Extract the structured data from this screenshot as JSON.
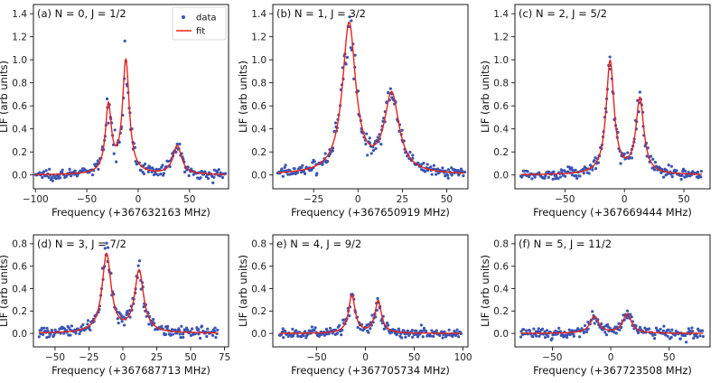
{
  "colors": {
    "data": "#3a55b4",
    "fit": "#e8231c"
  },
  "legend": {
    "data_label": "data",
    "fit_label": "fit"
  },
  "chart_data": [
    {
      "type": "scatter",
      "title": "(a) N = 0, J = 1/2",
      "xlabel": "Frequency (+367632163 MHz)",
      "ylabel": "LIF (arb units)",
      "xlim": [
        -102,
        88
      ],
      "ylim": [
        -0.12,
        1.48
      ],
      "xticks": [
        -100,
        -50,
        0,
        50
      ],
      "yticks": [
        0.0,
        0.2,
        0.4,
        0.6,
        0.8,
        1.0,
        1.2,
        1.4
      ],
      "legend": true,
      "series": [
        {
          "name": "data",
          "style": "points"
        },
        {
          "name": "fit",
          "style": "line",
          "peaks": [
            {
              "center": -29,
              "height": 0.58,
              "width": 3.5
            },
            {
              "center": -12,
              "height": 0.98,
              "width": 4.0
            },
            {
              "center": 38,
              "height": 0.25,
              "width": 5.0
            }
          ],
          "x_range": [
            -100,
            85
          ]
        }
      ]
    },
    {
      "type": "scatter",
      "title": "(b) N = 1, J = 3/2",
      "xlabel": "Frequency (+367650919 MHz)",
      "ylabel": "LIF (arb units)",
      "xlim": [
        -48,
        62
      ],
      "ylim": [
        -0.12,
        1.48
      ],
      "xticks": [
        -25,
        0,
        25,
        50
      ],
      "yticks": [
        0.0,
        0.2,
        0.4,
        0.6,
        0.8,
        1.0,
        1.2,
        1.4
      ],
      "legend": false,
      "series": [
        {
          "name": "data",
          "style": "points"
        },
        {
          "name": "fit",
          "style": "line",
          "peaks": [
            {
              "center": -5,
              "height": 1.3,
              "width": 4.5
            },
            {
              "center": 19,
              "height": 0.68,
              "width": 5.0
            }
          ],
          "x_range": [
            -45,
            60
          ]
        }
      ]
    },
    {
      "type": "scatter",
      "title": "(c) N = 2, J = 5/2",
      "xlabel": "Frequency (+367669444 MHz)",
      "ylabel": "LIF (arb units)",
      "xlim": [
        -92,
        72
      ],
      "ylim": [
        -0.12,
        1.48
      ],
      "xticks": [
        -50,
        0,
        50
      ],
      "yticks": [
        0.0,
        0.2,
        0.4,
        0.6,
        0.8,
        1.0,
        1.2,
        1.4
      ],
      "legend": false,
      "series": [
        {
          "name": "data",
          "style": "points"
        },
        {
          "name": "fit",
          "style": "line",
          "peaks": [
            {
              "center": -12,
              "height": 0.98,
              "width": 4.0
            },
            {
              "center": 13,
              "height": 0.65,
              "width": 4.0
            }
          ],
          "x_range": [
            -87,
            65
          ]
        }
      ]
    },
    {
      "type": "scatter",
      "title": "(d) N = 3, J = 7/2",
      "xlabel": "Frequency (+367687713 MHz)",
      "ylabel": "LIF (arb units)",
      "xlim": [
        -66,
        78
      ],
      "ylim": [
        -0.12,
        0.88
      ],
      "xticks": [
        -50,
        -25,
        0,
        25,
        50,
        75
      ],
      "yticks": [
        0.0,
        0.2,
        0.4,
        0.6,
        0.8
      ],
      "legend": false,
      "series": [
        {
          "name": "data",
          "style": "points"
        },
        {
          "name": "fit",
          "style": "line",
          "peaks": [
            {
              "center": -12,
              "height": 0.7,
              "width": 4.0
            },
            {
              "center": 12,
              "height": 0.55,
              "width": 4.0
            }
          ],
          "x_range": [
            -62,
            70
          ]
        }
      ]
    },
    {
      "type": "scatter",
      "title": "e) N = 4, J = 9/2",
      "xlabel": "Frequency (+367705734 MHz)",
      "ylabel": "LIF (arb units)",
      "xlim": [
        -95,
        105
      ],
      "ylim": [
        -0.12,
        0.88
      ],
      "xticks": [
        -50,
        0,
        50,
        100
      ],
      "yticks": [
        0.0,
        0.2,
        0.4,
        0.6,
        0.8
      ],
      "legend": false,
      "series": [
        {
          "name": "data",
          "style": "points"
        },
        {
          "name": "fit",
          "style": "line",
          "peaks": [
            {
              "center": -14,
              "height": 0.34,
              "width": 4.0
            },
            {
              "center": 13,
              "height": 0.29,
              "width": 4.0
            }
          ],
          "x_range": [
            -88,
            98
          ]
        }
      ]
    },
    {
      "type": "scatter",
      "title": "(f) N = 5, J = 11/2",
      "xlabel": "Frequency (+367723508 MHz)",
      "ylabel": "LIF (arb units)",
      "xlim": [
        -82,
        85
      ],
      "ylim": [
        -0.12,
        0.88
      ],
      "xticks": [
        -50,
        0,
        50
      ],
      "yticks": [
        0.0,
        0.2,
        0.4,
        0.6,
        0.8
      ],
      "legend": false,
      "series": [
        {
          "name": "data",
          "style": "points"
        },
        {
          "name": "fit",
          "style": "line",
          "peaks": [
            {
              "center": -14,
              "height": 0.15,
              "width": 4.5
            },
            {
              "center": 14,
              "height": 0.17,
              "width": 4.5
            }
          ],
          "x_range": [
            -77,
            79
          ]
        }
      ]
    }
  ]
}
